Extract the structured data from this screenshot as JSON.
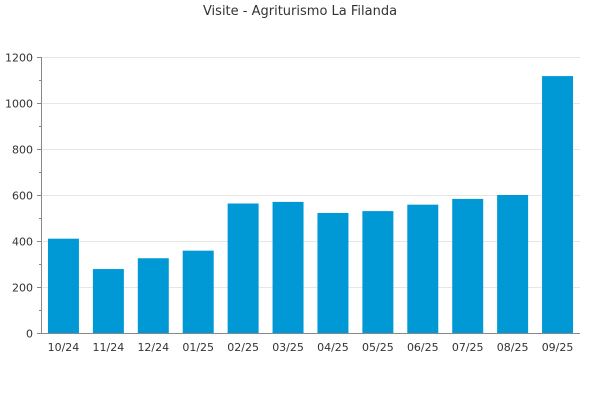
{
  "chart_data": {
    "type": "bar",
    "title": "Visite - Agriturismo La Filanda",
    "categories": [
      "10/24",
      "11/24",
      "12/24",
      "01/25",
      "02/25",
      "03/25",
      "04/25",
      "05/25",
      "06/25",
      "07/25",
      "08/25",
      "09/25"
    ],
    "values": [
      410,
      278,
      325,
      358,
      563,
      570,
      522,
      530,
      558,
      583,
      600,
      1117
    ],
    "ylim": [
      0,
      1200
    ],
    "yticks": [
      0,
      200,
      400,
      600,
      800,
      1000,
      1200
    ],
    "xlabel": "",
    "ylabel": "",
    "grid": true,
    "bar_color": "#0099d6",
    "grid_color": "#e6e6e6",
    "axis_color": "#888888"
  }
}
